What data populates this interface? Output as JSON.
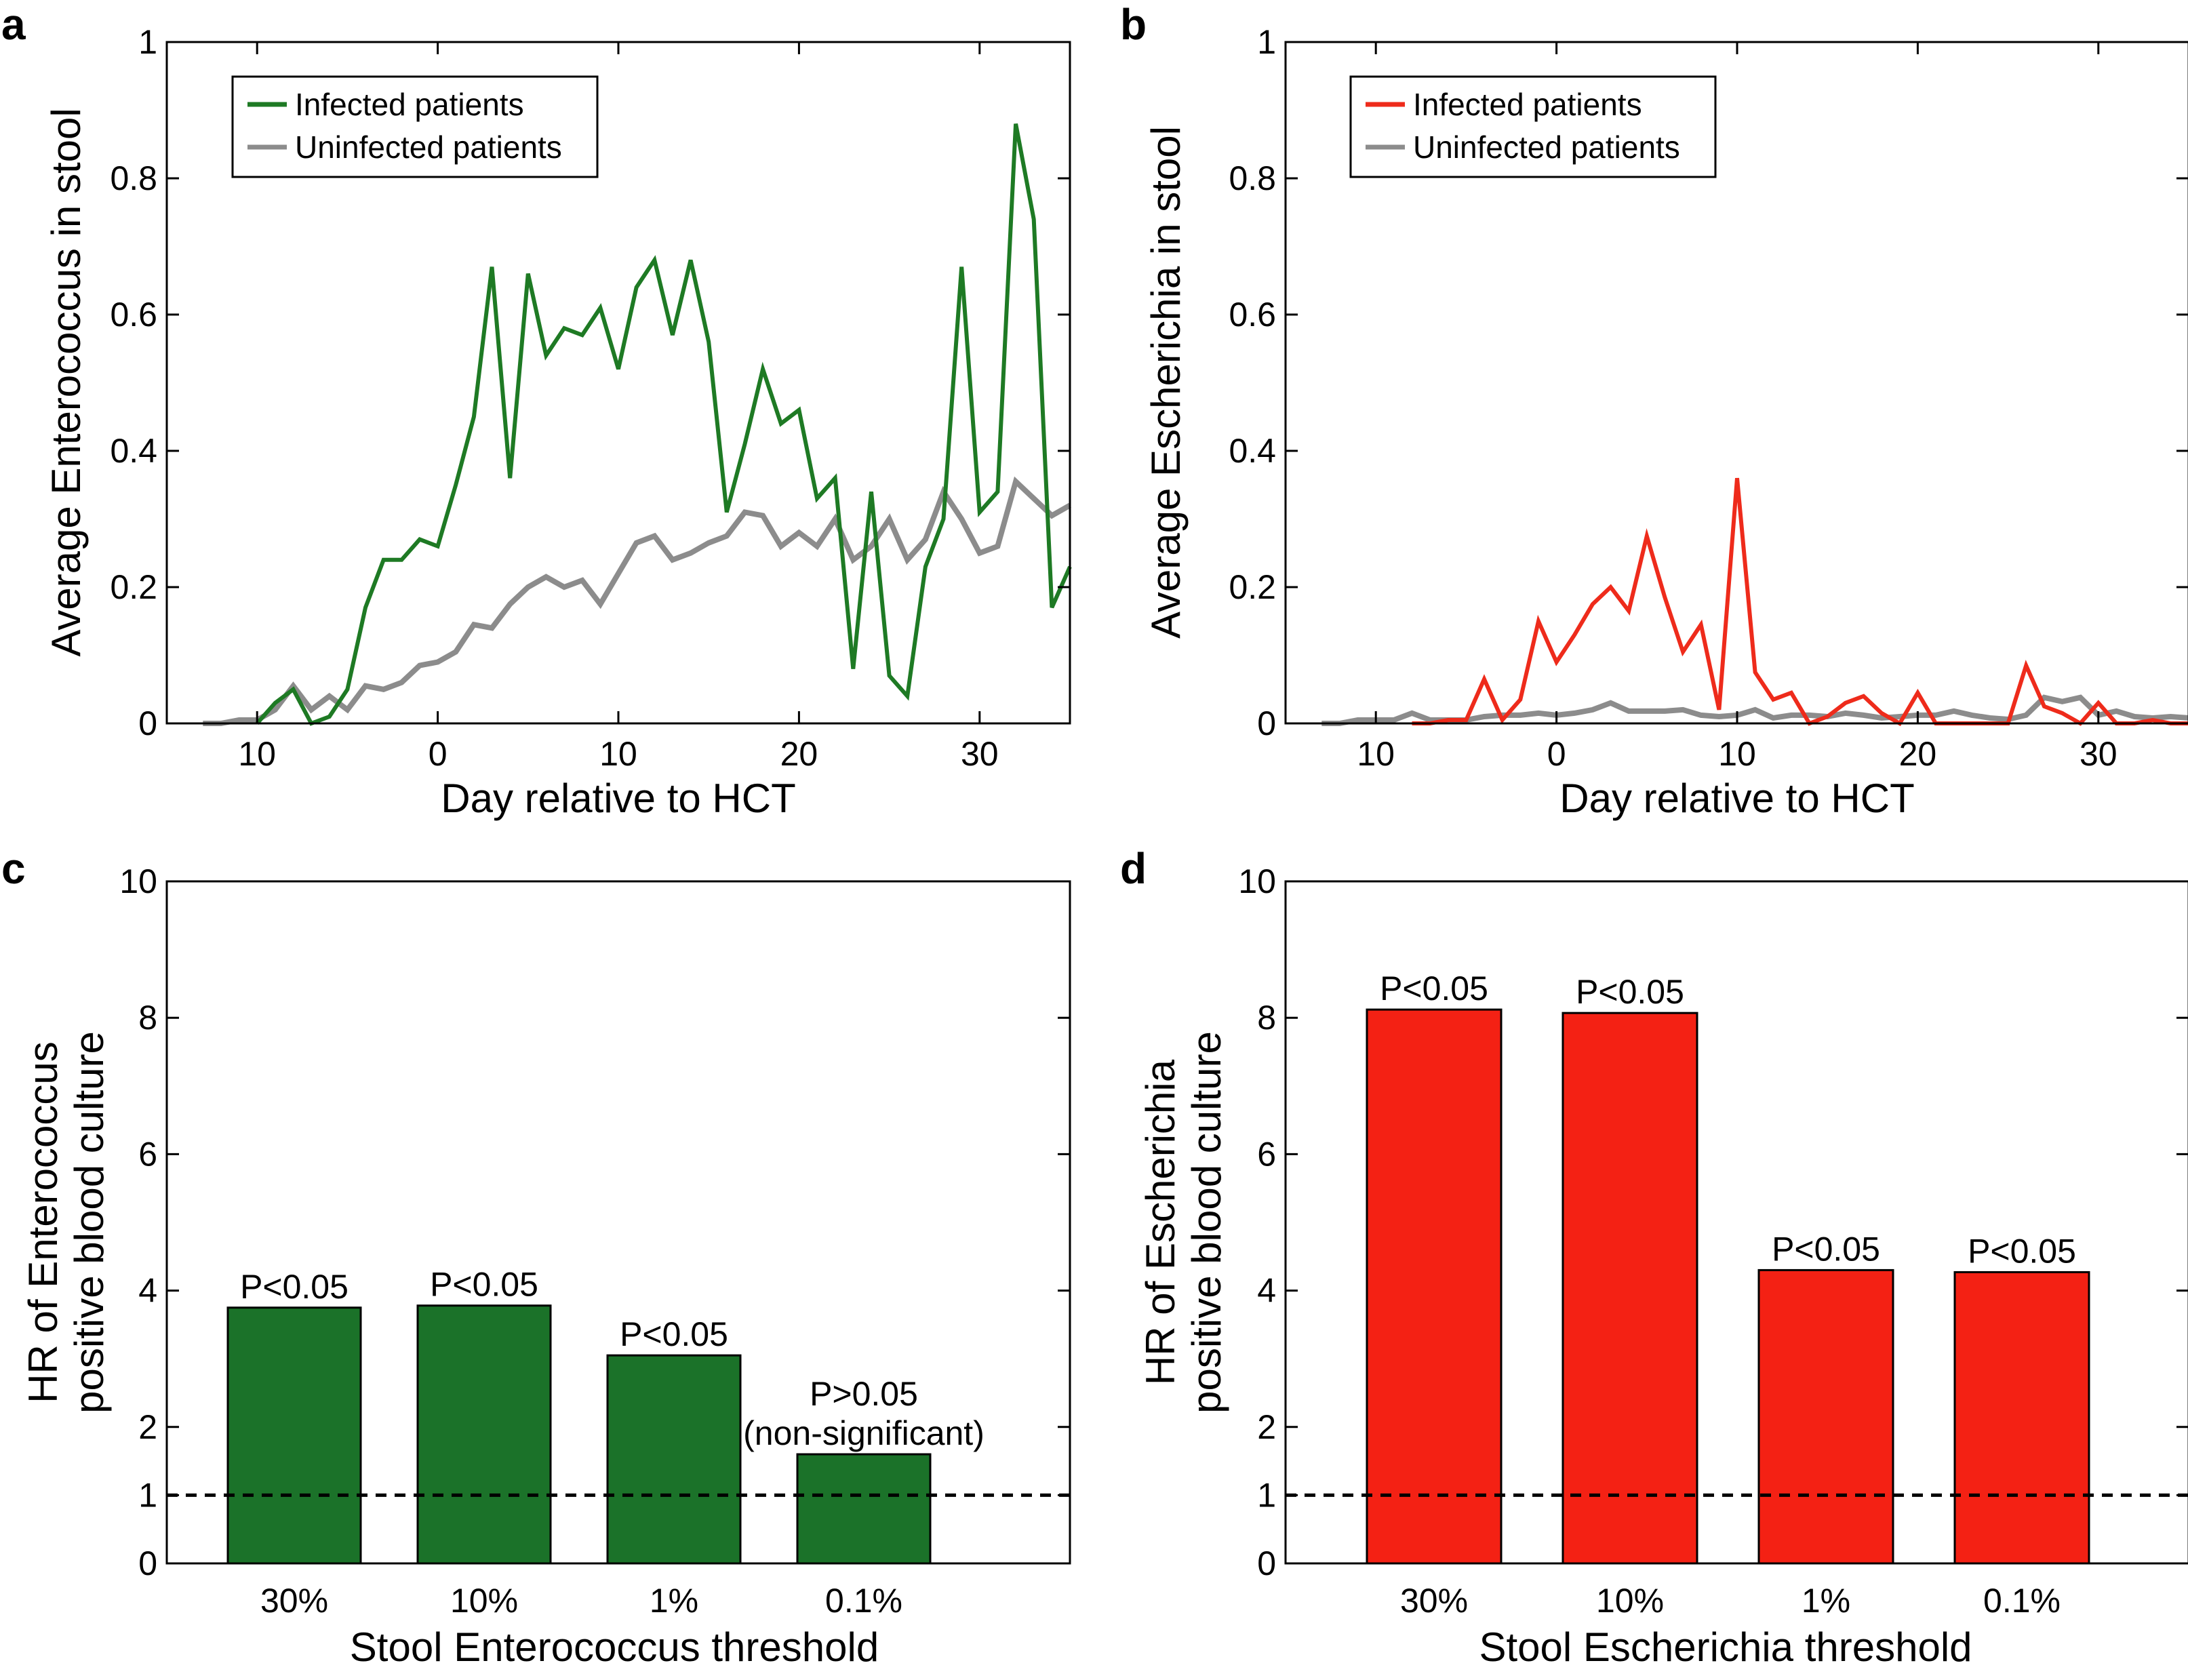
{
  "chart_data": [
    {
      "panel": "a",
      "type": "line",
      "xlabel": "Day relative to HCT",
      "ylabel": "Average Enterococcus in stool",
      "xlim": [
        -15,
        35
      ],
      "ylim": [
        0,
        1
      ],
      "xticks": [
        {
          "v": -10,
          "label": "10"
        },
        {
          "v": 0,
          "label": "0"
        },
        {
          "v": 10,
          "label": "10"
        },
        {
          "v": 20,
          "label": "20"
        },
        {
          "v": 30,
          "label": "30"
        }
      ],
      "yticks": [
        {
          "v": 0,
          "label": "0"
        },
        {
          "v": 0.2,
          "label": "0.2"
        },
        {
          "v": 0.4,
          "label": "0.4"
        },
        {
          "v": 0.6,
          "label": "0.6"
        },
        {
          "v": 0.8,
          "label": "0.8"
        },
        {
          "v": 1,
          "label": "1"
        }
      ],
      "legend_position": "top-left",
      "series": [
        {
          "name": "Infected patients",
          "color": "#1e7a24",
          "x": [
            -10,
            -9,
            -8,
            -7,
            -6,
            -5,
            -4,
            -3,
            -2,
            -1,
            0,
            1,
            2,
            3,
            4,
            5,
            6,
            7,
            8,
            9,
            10,
            11,
            12,
            13,
            14,
            15,
            16,
            17,
            18,
            19,
            20,
            21,
            22,
            23,
            24,
            25,
            26,
            27,
            28,
            29,
            30,
            31,
            32,
            33,
            34,
            35
          ],
          "y": [
            0.0,
            0.03,
            0.05,
            0.0,
            0.01,
            0.05,
            0.17,
            0.24,
            0.24,
            0.27,
            0.26,
            0.35,
            0.45,
            0.67,
            0.36,
            0.66,
            0.54,
            0.58,
            0.57,
            0.61,
            0.52,
            0.64,
            0.68,
            0.57,
            0.68,
            0.56,
            0.31,
            0.41,
            0.52,
            0.44,
            0.46,
            0.33,
            0.36,
            0.08,
            0.34,
            0.07,
            0.04,
            0.23,
            0.3,
            0.67,
            0.31,
            0.34,
            0.88,
            0.74,
            0.17,
            0.23
          ]
        },
        {
          "name": "Uninfected patients",
          "color": "#8c8c8c",
          "x": [
            -13,
            -12,
            -11,
            -10,
            -9,
            -8,
            -7,
            -6,
            -5,
            -4,
            -3,
            -2,
            -1,
            0,
            1,
            2,
            3,
            4,
            5,
            6,
            7,
            8,
            9,
            10,
            11,
            12,
            13,
            14,
            15,
            16,
            17,
            18,
            19,
            20,
            21,
            22,
            23,
            24,
            25,
            26,
            27,
            28,
            29,
            30,
            31,
            32,
            33,
            34,
            35
          ],
          "y": [
            0.0,
            0.0,
            0.005,
            0.005,
            0.02,
            0.055,
            0.02,
            0.04,
            0.02,
            0.055,
            0.05,
            0.06,
            0.085,
            0.09,
            0.105,
            0.145,
            0.14,
            0.175,
            0.2,
            0.215,
            0.2,
            0.21,
            0.175,
            0.22,
            0.265,
            0.275,
            0.24,
            0.25,
            0.265,
            0.275,
            0.31,
            0.305,
            0.26,
            0.28,
            0.26,
            0.3,
            0.24,
            0.26,
            0.3,
            0.24,
            0.27,
            0.34,
            0.3,
            0.25,
            0.26,
            0.355,
            0.33,
            0.305,
            0.32
          ]
        }
      ]
    },
    {
      "panel": "b",
      "type": "line",
      "xlabel": "Day relative to HCT",
      "ylabel": "Average Escherichia in stool",
      "xlim": [
        -15,
        35
      ],
      "ylim": [
        0,
        1
      ],
      "xticks": [
        {
          "v": -10,
          "label": "10"
        },
        {
          "v": 0,
          "label": "0"
        },
        {
          "v": 10,
          "label": "10"
        },
        {
          "v": 20,
          "label": "20"
        },
        {
          "v": 30,
          "label": "30"
        }
      ],
      "yticks": [
        {
          "v": 0,
          "label": "0"
        },
        {
          "v": 0.2,
          "label": "0.2"
        },
        {
          "v": 0.4,
          "label": "0.4"
        },
        {
          "v": 0.6,
          "label": "0.6"
        },
        {
          "v": 0.8,
          "label": "0.8"
        },
        {
          "v": 1,
          "label": "1"
        }
      ],
      "legend_position": "top-left",
      "series": [
        {
          "name": "Infected patients",
          "color": "#ee2b1b",
          "x": [
            -8,
            -7,
            -6,
            -5,
            -4,
            -3,
            -2,
            -1,
            0,
            1,
            2,
            3,
            4,
            5,
            6,
            7,
            8,
            9,
            10,
            11,
            12,
            13,
            14,
            15,
            16,
            17,
            18,
            19,
            20,
            21,
            22,
            23,
            24,
            25,
            26,
            27,
            28,
            29,
            30,
            31,
            32,
            33,
            34,
            35
          ],
          "y": [
            0.0,
            0.0,
            0.005,
            0.005,
            0.065,
            0.005,
            0.035,
            0.15,
            0.09,
            0.13,
            0.175,
            0.2,
            0.165,
            0.275,
            0.185,
            0.105,
            0.145,
            0.02,
            0.36,
            0.075,
            0.035,
            0.045,
            0.0,
            0.01,
            0.03,
            0.04,
            0.015,
            0.0,
            0.045,
            0.0,
            0.0,
            0.0,
            0.0,
            0.0,
            0.085,
            0.025,
            0.015,
            0.0,
            0.03,
            0.0,
            0.0,
            0.005,
            0.0,
            0.0
          ]
        },
        {
          "name": "Uninfected patients",
          "color": "#8c8c8c",
          "x": [
            -13,
            -12,
            -11,
            -10,
            -9,
            -8,
            -7,
            -6,
            -5,
            -4,
            -3,
            -2,
            -1,
            0,
            1,
            2,
            3,
            4,
            5,
            6,
            7,
            8,
            9,
            10,
            11,
            12,
            13,
            14,
            15,
            16,
            17,
            18,
            19,
            20,
            21,
            22,
            23,
            24,
            25,
            26,
            27,
            28,
            29,
            30,
            31,
            32,
            33,
            34,
            35
          ],
          "y": [
            0.0,
            0.0,
            0.005,
            0.005,
            0.005,
            0.015,
            0.005,
            0.005,
            0.005,
            0.01,
            0.012,
            0.012,
            0.015,
            0.012,
            0.015,
            0.02,
            0.03,
            0.018,
            0.018,
            0.018,
            0.02,
            0.012,
            0.01,
            0.012,
            0.02,
            0.008,
            0.012,
            0.012,
            0.01,
            0.015,
            0.012,
            0.008,
            0.01,
            0.012,
            0.012,
            0.018,
            0.012,
            0.008,
            0.006,
            0.012,
            0.038,
            0.032,
            0.038,
            0.012,
            0.018,
            0.01,
            0.008,
            0.01,
            0.008
          ]
        }
      ]
    },
    {
      "panel": "c",
      "type": "bar",
      "xlabel": "Stool Enterococcus threshold",
      "ylabel_lines": [
        "HR of Enterococcus",
        "positive blood culture"
      ],
      "ylim": [
        0,
        10
      ],
      "yticks": [
        {
          "v": 0,
          "label": "0"
        },
        {
          "v": 1,
          "label": "1"
        },
        {
          "v": 2,
          "label": "2"
        },
        {
          "v": 4,
          "label": "4"
        },
        {
          "v": 6,
          "label": "6"
        },
        {
          "v": 8,
          "label": "8"
        },
        {
          "v": 10,
          "label": "10"
        }
      ],
      "reference_line": 1,
      "color": "#1b7229",
      "categories": [
        "30%",
        "10%",
        "1%",
        "0.1%"
      ],
      "values": [
        3.75,
        3.78,
        3.05,
        1.6
      ],
      "annotations": [
        [
          "P<0.05"
        ],
        [
          "P<0.05"
        ],
        [
          "P<0.05"
        ],
        [
          "P>0.05",
          "(non-significant)"
        ]
      ]
    },
    {
      "panel": "d",
      "type": "bar",
      "xlabel": "Stool Escherichia threshold",
      "ylabel_lines": [
        "HR of Escherichia",
        "positive blood culture"
      ],
      "ylim": [
        0,
        10
      ],
      "yticks": [
        {
          "v": 0,
          "label": "0"
        },
        {
          "v": 1,
          "label": "1"
        },
        {
          "v": 2,
          "label": "2"
        },
        {
          "v": 4,
          "label": "4"
        },
        {
          "v": 6,
          "label": "6"
        },
        {
          "v": 8,
          "label": "8"
        },
        {
          "v": 10,
          "label": "10"
        }
      ],
      "reference_line": 1,
      "color": "#f42114",
      "categories": [
        "30%",
        "10%",
        "1%",
        "0.1%"
      ],
      "values": [
        8.12,
        8.07,
        4.3,
        4.27
      ],
      "annotations": [
        [
          "P<0.05"
        ],
        [
          "P<0.05"
        ],
        [
          "P<0.05"
        ],
        [
          "P<0.05"
        ]
      ]
    }
  ]
}
